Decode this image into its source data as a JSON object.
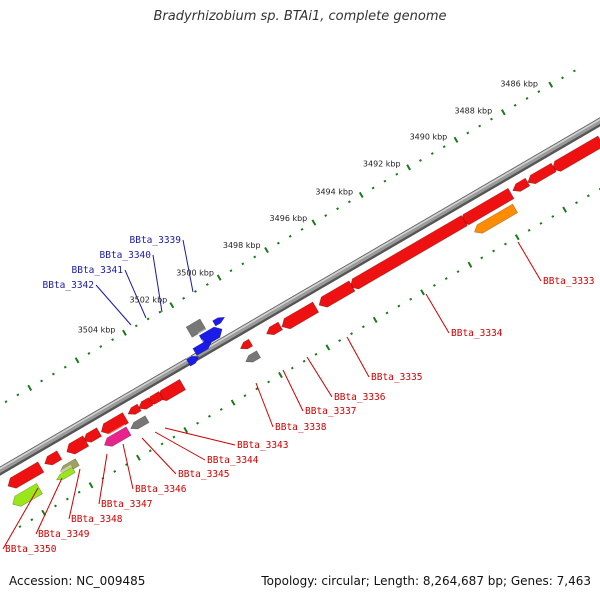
{
  "title": "Bradyrhizobium sp. BTAi1, complete genome",
  "footer": {
    "accession": "Accession: NC_009485",
    "summary": "Topology: circular; Length: 8,264,687 bp; Genes: 7,463"
  },
  "colors": {
    "backbone": "#888888",
    "tick_outer": "#1a7a1a",
    "tick_inner": "#1a7a1a",
    "forward_label": "#1a1aa6",
    "reverse_label": "#cc0000",
    "gene_red": "#ee1111",
    "gene_blue": "#1c1ce8",
    "gene_gray": "#777777",
    "gene_orange": "#ff8c00",
    "gene_magenta": "#e8238c",
    "gene_olive": "#a0a060",
    "gene_lime": "#99e61a"
  },
  "ticks": [
    {
      "label": "3486 kbp"
    },
    {
      "label": "3488 kbp"
    },
    {
      "label": "3490 kbp"
    },
    {
      "label": "3492 kbp"
    },
    {
      "label": "3494 kbp"
    },
    {
      "label": "3496 kbp"
    },
    {
      "label": "3498 kbp"
    },
    {
      "label": "3500 kbp"
    },
    {
      "label": "3502 kbp"
    },
    {
      "label": "3504 kbp"
    }
  ],
  "forward_genes": [
    {
      "label": "BBta_3339"
    },
    {
      "label": "BBta_3340"
    },
    {
      "label": "BBta_3341"
    },
    {
      "label": "BBta_3342"
    }
  ],
  "reverse_genes": [
    {
      "label": "BBta_3333"
    },
    {
      "label": "BBta_3334"
    },
    {
      "label": "BBta_3335"
    },
    {
      "label": "BBta_3336"
    },
    {
      "label": "BBta_3337"
    },
    {
      "label": "BBta_3338"
    },
    {
      "label": "BBta_3343"
    },
    {
      "label": "BBta_3344"
    },
    {
      "label": "BBta_3345"
    },
    {
      "label": "BBta_3346"
    },
    {
      "label": "BBta_3347"
    },
    {
      "label": "BBta_3348"
    },
    {
      "label": "BBta_3349"
    },
    {
      "label": "BBta_3350"
    }
  ]
}
